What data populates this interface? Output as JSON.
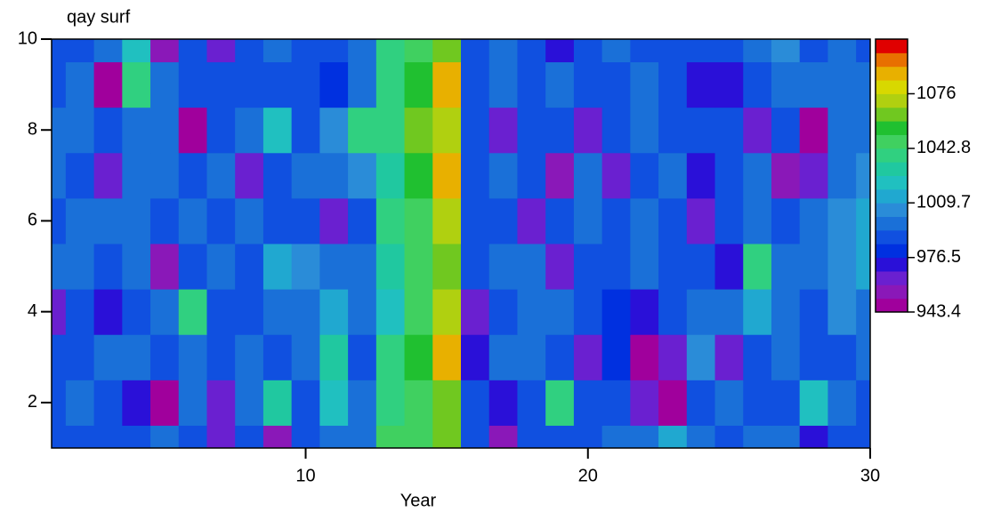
{
  "chart_data": {
    "type": "contour",
    "title": "qay surf",
    "xlabel": "Year",
    "x": [
      1,
      2,
      3,
      4,
      5,
      6,
      7,
      8,
      9,
      10,
      11,
      12,
      13,
      14,
      15,
      16,
      17,
      18,
      19,
      20,
      21,
      22,
      23,
      24,
      25,
      26,
      27,
      28,
      29,
      30
    ],
    "y": [
      1,
      2,
      3,
      4,
      5,
      6,
      7,
      8,
      9,
      10
    ],
    "z": [
      [
        985,
        990,
        985,
        990,
        995,
        985,
        965,
        990,
        955,
        985,
        1000,
        995,
        1045,
        1050,
        1065,
        985,
        955,
        985,
        990,
        985,
        995,
        1000,
        1010,
        995,
        985,
        1000,
        995,
        970,
        990,
        985
      ],
      [
        990,
        995,
        985,
        975,
        950,
        995,
        965,
        995,
        1030,
        990,
        1025,
        995,
        1035,
        1050,
        1060,
        990,
        975,
        990,
        1035,
        985,
        990,
        965,
        950,
        990,
        995,
        985,
        990,
        1025,
        995,
        990
      ],
      [
        985,
        990,
        995,
        1000,
        990,
        995,
        985,
        995,
        990,
        995,
        1030,
        985,
        1035,
        1055,
        1085,
        975,
        995,
        1000,
        990,
        960,
        980,
        950,
        965,
        1005,
        965,
        990,
        995,
        985,
        990,
        995
      ],
      [
        960,
        985,
        970,
        990,
        995,
        1035,
        985,
        990,
        995,
        1000,
        1010,
        995,
        1025,
        1050,
        1070,
        960,
        990,
        995,
        1000,
        985,
        980,
        970,
        990,
        1000,
        995,
        1010,
        1000,
        990,
        1005,
        1000
      ],
      [
        995,
        1000,
        990,
        995,
        955,
        990,
        1000,
        990,
        1010,
        1005,
        1000,
        995,
        1030,
        1045,
        1060,
        990,
        995,
        1000,
        965,
        985,
        990,
        995,
        985,
        985,
        970,
        1040,
        995,
        1000,
        1005,
        1010
      ],
      [
        990,
        995,
        1000,
        995,
        990,
        995,
        990,
        995,
        985,
        990,
        965,
        985,
        1035,
        1050,
        1070,
        985,
        990,
        965,
        990,
        995,
        985,
        995,
        990,
        965,
        990,
        995,
        990,
        995,
        1005,
        1010
      ],
      [
        995,
        990,
        965,
        1000,
        995,
        990,
        995,
        960,
        990,
        995,
        1000,
        1005,
        1030,
        1055,
        1090,
        990,
        1000,
        985,
        955,
        995,
        965,
        990,
        995,
        975,
        985,
        995,
        955,
        965,
        995,
        1005
      ],
      [
        995,
        1000,
        990,
        995,
        1000,
        945,
        990,
        995,
        1025,
        990,
        1005,
        1035,
        1040,
        1060,
        1075,
        990,
        965,
        990,
        985,
        962,
        990,
        995,
        990,
        985,
        990,
        965,
        985,
        950,
        995,
        1000
      ],
      [
        990,
        1000,
        950,
        1040,
        995,
        990,
        985,
        990,
        985,
        985,
        980,
        995,
        1040,
        1055,
        1085,
        985,
        1000,
        985,
        995,
        985,
        990,
        995,
        990,
        970,
        970,
        990,
        1000,
        995,
        1000,
        995
      ],
      [
        985,
        990,
        995,
        1025,
        955,
        985,
        965,
        990,
        995,
        985,
        990,
        995,
        1035,
        1050,
        1065,
        990,
        1000,
        985,
        975,
        990,
        995,
        985,
        990,
        985,
        990,
        1000,
        1005,
        990,
        995,
        990
      ]
    ],
    "xlim": [
      1,
      30
    ],
    "ylim": [
      1,
      10
    ],
    "xticks": [
      10,
      20,
      30
    ],
    "yticks": [
      2,
      4,
      6,
      8,
      10
    ],
    "zlim": [
      943.4,
      1109.2
    ],
    "zticks": [
      943.4,
      976.5,
      1009.7,
      1042.8,
      1076
    ],
    "colormap": [
      "#a0009c",
      "#8a18b8",
      "#6a20d0",
      "#2a10d8",
      "#0030e0",
      "#1050e0",
      "#1a70d8",
      "#2a8cd8",
      "#20a8d0",
      "#20c0c0",
      "#20c8a0",
      "#30d080",
      "#40d060",
      "#20c030",
      "#70c820",
      "#b0d010",
      "#d8d800",
      "#e8b000",
      "#e87000",
      "#e00000"
    ]
  }
}
